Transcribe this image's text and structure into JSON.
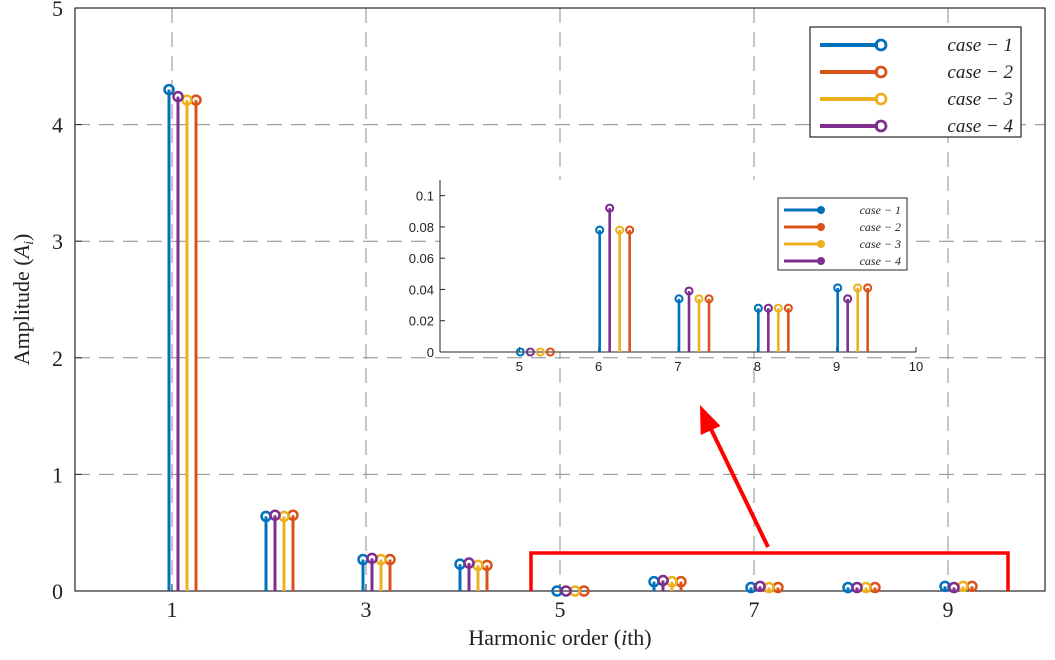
{
  "chart_data": [
    {
      "type": "stem",
      "xlabel": "Harmonic order (ith)",
      "xlabel_parts": [
        "Harmonic order (",
        "i",
        "th)"
      ],
      "ylabel": "Amplitude (Ai)",
      "ylabel_parts": [
        "Amplitude (",
        "A",
        "i",
        ")"
      ],
      "xlim": [
        0,
        10
      ],
      "ylim": [
        0,
        5
      ],
      "xticks": [
        1,
        3,
        5,
        7,
        9
      ],
      "yticks": [
        0,
        1,
        2,
        3,
        4,
        5
      ],
      "grid": true,
      "legend_position": "top-right",
      "harmonics": [
        1,
        2,
        3,
        4,
        5,
        6,
        7,
        8,
        9
      ],
      "series": [
        {
          "name": "case − 1",
          "color": "#0072BD",
          "values": [
            4.3,
            0.64,
            0.27,
            0.23,
            0.0,
            0.08,
            0.03,
            0.03,
            0.04
          ]
        },
        {
          "name": "case − 2",
          "color": "#D95319",
          "values": [
            4.21,
            0.65,
            0.27,
            0.22,
            0.0,
            0.08,
            0.03,
            0.03,
            0.04
          ]
        },
        {
          "name": "case − 3",
          "color": "#EDB120",
          "values": [
            4.21,
            0.64,
            0.27,
            0.22,
            0.0,
            0.08,
            0.03,
            0.03,
            0.04
          ]
        },
        {
          "name": "case − 4",
          "color": "#7E2F8E",
          "values": [
            4.24,
            0.65,
            0.28,
            0.24,
            0.0,
            0.09,
            0.04,
            0.03,
            0.03
          ]
        }
      ]
    },
    {
      "type": "stem",
      "role": "zoomed inset of harmonics 5-9",
      "xlim": [
        4,
        10
      ],
      "ylim": [
        0,
        0.11
      ],
      "xticks": [
        5,
        6,
        7,
        8,
        9,
        10
      ],
      "yticks": [
        0,
        0.02,
        0.04,
        0.06,
        0.08,
        0.1
      ],
      "grid": false,
      "legend_position": "top-right",
      "harmonics": [
        5,
        6,
        7,
        8,
        9
      ],
      "series": [
        {
          "name": "case − 1",
          "color": "#0072BD",
          "values": [
            0.0,
            0.078,
            0.034,
            0.028,
            0.041
          ]
        },
        {
          "name": "case − 2",
          "color": "#D95319",
          "values": [
            0.0,
            0.078,
            0.034,
            0.028,
            0.041
          ]
        },
        {
          "name": "case − 3",
          "color": "#EDB120",
          "values": [
            0.0,
            0.078,
            0.034,
            0.028,
            0.041
          ]
        },
        {
          "name": "case − 4",
          "color": "#7E2F8E",
          "values": [
            0.0,
            0.092,
            0.039,
            0.028,
            0.034
          ]
        }
      ]
    }
  ],
  "annotation": {
    "highlight_color": "#FF0000"
  }
}
